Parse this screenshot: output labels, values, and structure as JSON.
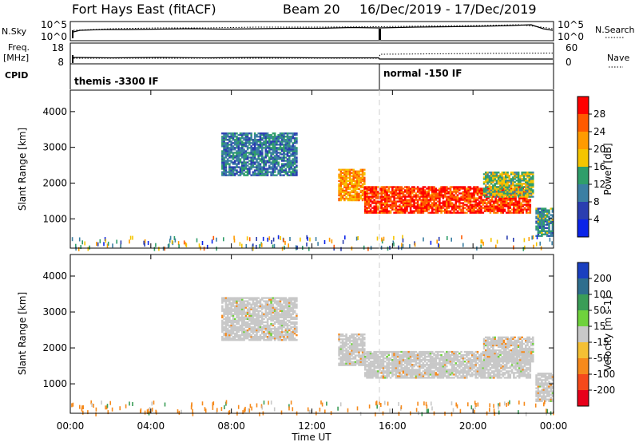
{
  "header": {
    "station": "Fort Hays East (fitACF)",
    "beam": "Beam 20",
    "dates": "16/Dec/2019 - 17/Dec/2019"
  },
  "top_panel": {
    "left_label_top": "N.Sky",
    "left_label_bottom": "Freq.",
    "left_unit": "[MHz]",
    "cpid_label": "CPID",
    "nsky_ticks": [
      "10^5",
      "10^0"
    ],
    "freq_ticks": [
      "18",
      "8"
    ],
    "right_label_top": "N.Search",
    "right_label_bottom": "Nave",
    "right_nsearch_ticks": [
      "10^5",
      "10^0"
    ],
    "right_nave_ticks": [
      "60",
      "0"
    ],
    "cpid_segments": [
      {
        "label": "themis -3300 IF",
        "start_hour": 0.0
      },
      {
        "label": "normal -150 IF",
        "start_hour": 15.4
      }
    ]
  },
  "x_axis": {
    "label": "Time UT",
    "ticks": [
      "00:00",
      "04:00",
      "08:00",
      "12:00",
      "16:00",
      "20:00",
      "00:00"
    ],
    "tick_hours": [
      0,
      4,
      8,
      12,
      16,
      20,
      24
    ]
  },
  "y_axis": {
    "label": "Slant Range [km]",
    "ticks": [
      "1000",
      "2000",
      "3000",
      "4000"
    ],
    "tick_values": [
      1000,
      2000,
      3000,
      4000
    ]
  },
  "power_colorbar": {
    "title": "Power [dB]",
    "labels": [
      "28",
      "24",
      "20",
      "16",
      "12",
      "8",
      "4"
    ],
    "colors": [
      "#ff0000",
      "#ff5a00",
      "#ff9b00",
      "#f5c500",
      "#2f9e6a",
      "#3b7fa3",
      "#2a3eb0",
      "#0b24e8"
    ]
  },
  "velocity_colorbar": {
    "title": "Velocity [m s-1]",
    "labels": [
      "200",
      "100",
      "50",
      "15",
      "-15",
      "-50",
      "-100",
      "-200"
    ],
    "colors": [
      "#1a3fc0",
      "#2e6e8e",
      "#3a9d57",
      "#6fd23c",
      "#c8c8c8",
      "#f4c034",
      "#f68a1c",
      "#f5491b",
      "#e8001a"
    ]
  },
  "chart_data": {
    "type": "heatmap",
    "title": "Fort Hays East (fitACF)",
    "xlabel": "Time UT",
    "ylabel": "Slant Range [km]",
    "xlim": [
      0,
      24
    ],
    "ylim": [
      180,
      4600
    ],
    "cpid_change_hour": 15.4,
    "panels": [
      {
        "name": "Power [dB]",
        "regions": [
          {
            "t0": 7.5,
            "t1": 11.2,
            "r0": 2200,
            "r1": 3400,
            "value": 8
          },
          {
            "t0": 13.3,
            "t1": 14.6,
            "r0": 1500,
            "r1": 2400,
            "value": 20
          },
          {
            "t0": 14.6,
            "t1": 22.8,
            "r0": 1150,
            "r1": 1900,
            "value": 26
          },
          {
            "t0": 20.5,
            "t1": 23.0,
            "r0": 1600,
            "r1": 2300,
            "value": 14
          },
          {
            "t0": 23.1,
            "t1": 24.0,
            "r0": 500,
            "r1": 1300,
            "value": 10
          }
        ]
      },
      {
        "name": "Velocity [m s-1]",
        "regions": [
          {
            "t0": 7.5,
            "t1": 11.2,
            "r0": 2200,
            "r1": 3400,
            "value": 0
          },
          {
            "t0": 13.3,
            "t1": 14.6,
            "r0": 1500,
            "r1": 2400,
            "value": 0
          },
          {
            "t0": 14.6,
            "t1": 22.8,
            "r0": 1150,
            "r1": 1900,
            "value": 0
          },
          {
            "t0": 20.5,
            "t1": 23.0,
            "r0": 1600,
            "r1": 2300,
            "value": 0
          },
          {
            "t0": 23.1,
            "t1": 24.0,
            "r0": 500,
            "r1": 1300,
            "value": 0
          }
        ]
      }
    ]
  }
}
